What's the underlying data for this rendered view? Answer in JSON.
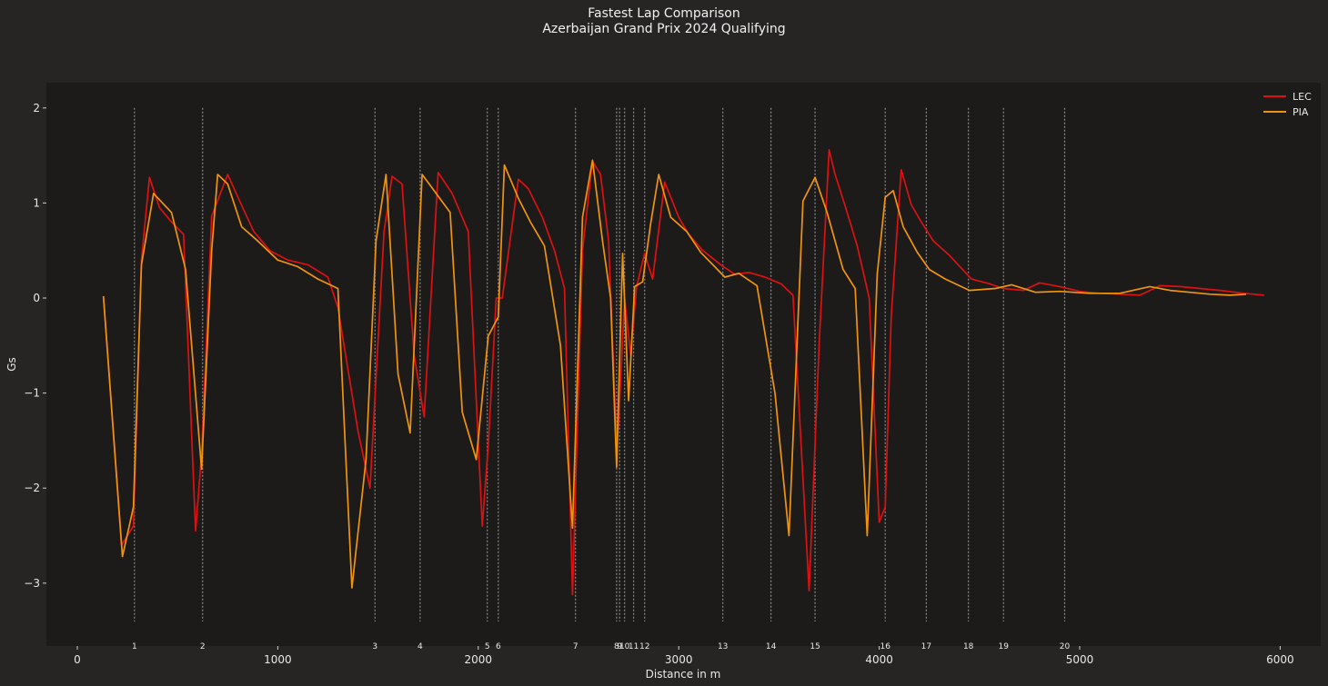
{
  "chart_data": {
    "type": "line",
    "title": "Fastest Lap Comparison",
    "subtitle": "Azerbaijan Grand Prix 2024 Qualifying",
    "xlabel": "Distance in m",
    "ylabel": "Gs",
    "xlim": [
      -150,
      6200
    ],
    "ylim": [
      -3.65,
      2.25
    ],
    "xticks": [
      0,
      1000,
      2000,
      3000,
      4000,
      5000,
      6000
    ],
    "yticks": [
      2,
      1,
      0,
      -1,
      -2,
      -3
    ],
    "grid": false,
    "legend_position": "top-right",
    "corners": [
      {
        "number": "1",
        "distance": 285
      },
      {
        "number": "2",
        "distance": 625
      },
      {
        "number": "3",
        "distance": 1485
      },
      {
        "number": "4",
        "distance": 1710
      },
      {
        "number": "5",
        "distance": 2045
      },
      {
        "number": "6",
        "distance": 2100
      },
      {
        "number": "7",
        "distance": 2485
      },
      {
        "number": "8",
        "distance": 2690
      },
      {
        "number": "9",
        "distance": 2705
      },
      {
        "number": "10",
        "distance": 2730
      },
      {
        "number": "11",
        "distance": 2775
      },
      {
        "number": "12",
        "distance": 2830
      },
      {
        "number": "13",
        "distance": 3220
      },
      {
        "number": "14",
        "distance": 3460
      },
      {
        "number": "15",
        "distance": 3680
      },
      {
        "number": "16",
        "distance": 4030
      },
      {
        "number": "17",
        "distance": 4235
      },
      {
        "number": "18",
        "distance": 4445
      },
      {
        "number": "19",
        "distance": 4620
      },
      {
        "number": "20",
        "distance": 4925
      }
    ],
    "series": [
      {
        "name": "LEC",
        "color": "#dd1111",
        "x": [
          130,
          220,
          280,
          320,
          360,
          410,
          470,
          530,
          590,
          620,
          670,
          750,
          810,
          880,
          960,
          1050,
          1150,
          1250,
          1300,
          1400,
          1460,
          1530,
          1570,
          1620,
          1680,
          1730,
          1800,
          1870,
          1950,
          2020,
          2050,
          2090,
          2120,
          2200,
          2250,
          2320,
          2380,
          2430,
          2470,
          2520,
          2570,
          2610,
          2650,
          2690,
          2700,
          2730,
          2760,
          2790,
          2830,
          2870,
          2930,
          3000,
          3050,
          3120,
          3210,
          3280,
          3350,
          3430,
          3510,
          3570,
          3650,
          3700,
          3750,
          3780,
          3830,
          3890,
          3950,
          4000,
          4030,
          4060,
          4110,
          4160,
          4210,
          4270,
          4350,
          4460,
          4550,
          4620,
          4720,
          4800,
          4900,
          5000,
          5100,
          5200,
          5300,
          5400,
          5500,
          5600,
          5700,
          5820,
          5920
        ],
        "y": [
          0.02,
          -2.6,
          -2.4,
          0.4,
          1.27,
          0.95,
          0.8,
          0.67,
          -2.45,
          -1.65,
          0.86,
          1.3,
          1.02,
          0.7,
          0.5,
          0.4,
          0.35,
          0.22,
          -0.1,
          -1.4,
          -2.0,
          0.7,
          1.28,
          1.2,
          -0.6,
          -1.25,
          1.32,
          1.1,
          0.7,
          -2.4,
          -1.55,
          0.0,
          0.0,
          1.25,
          1.15,
          0.85,
          0.5,
          0.1,
          -3.12,
          0.5,
          1.44,
          1.3,
          0.6,
          -1.55,
          -1.3,
          0.0,
          -0.6,
          0.12,
          0.47,
          0.2,
          1.22,
          0.85,
          0.67,
          0.5,
          0.35,
          0.25,
          0.27,
          0.22,
          0.15,
          0.03,
          -3.08,
          -0.5,
          1.56,
          1.3,
          0.97,
          0.55,
          0.0,
          -2.36,
          -2.2,
          -0.2,
          1.35,
          0.98,
          0.8,
          0.6,
          0.45,
          0.2,
          0.15,
          0.1,
          0.08,
          0.16,
          0.12,
          0.07,
          0.05,
          0.04,
          0.03,
          0.13,
          0.12,
          0.1,
          0.08,
          0.05,
          0.03
        ]
      },
      {
        "name": "PIA",
        "color": "#f0940f",
        "x": [
          130,
          225,
          280,
          320,
          380,
          470,
          540,
          620,
          670,
          700,
          750,
          820,
          900,
          1000,
          1100,
          1200,
          1300,
          1370,
          1440,
          1490,
          1540,
          1600,
          1660,
          1720,
          1790,
          1860,
          1920,
          1990,
          2050,
          2100,
          2130,
          2200,
          2260,
          2330,
          2410,
          2470,
          2520,
          2570,
          2620,
          2660,
          2690,
          2720,
          2750,
          2780,
          2820,
          2860,
          2900,
          2960,
          3040,
          3110,
          3170,
          3230,
          3300,
          3390,
          3480,
          3550,
          3620,
          3680,
          3740,
          3820,
          3880,
          3940,
          3990,
          4030,
          4070,
          4120,
          4190,
          4250,
          4330,
          4450,
          4580,
          4660,
          4780,
          4900,
          5050,
          5200,
          5350,
          5450,
          5550,
          5650,
          5750,
          5830
        ],
        "y": [
          0.02,
          -2.72,
          -2.2,
          0.35,
          1.1,
          0.9,
          0.3,
          -1.8,
          0.5,
          1.3,
          1.2,
          0.75,
          0.6,
          0.4,
          0.33,
          0.2,
          0.1,
          -3.05,
          -1.7,
          0.6,
          1.3,
          -0.8,
          -1.42,
          1.3,
          1.1,
          0.9,
          -1.2,
          -1.7,
          -0.4,
          -0.2,
          1.4,
          1.05,
          0.8,
          0.55,
          -0.5,
          -2.42,
          0.85,
          1.45,
          0.6,
          0.0,
          -1.78,
          0.47,
          -1.08,
          0.12,
          0.17,
          0.78,
          1.3,
          0.85,
          0.7,
          0.48,
          0.35,
          0.22,
          0.26,
          0.13,
          -1.0,
          -2.5,
          1.02,
          1.27,
          0.9,
          0.3,
          0.1,
          -2.5,
          0.25,
          1.06,
          1.13,
          0.75,
          0.48,
          0.3,
          0.2,
          0.08,
          0.1,
          0.14,
          0.06,
          0.07,
          0.05,
          0.05,
          0.12,
          0.08,
          0.06,
          0.04,
          0.03,
          0.04
        ]
      }
    ]
  }
}
